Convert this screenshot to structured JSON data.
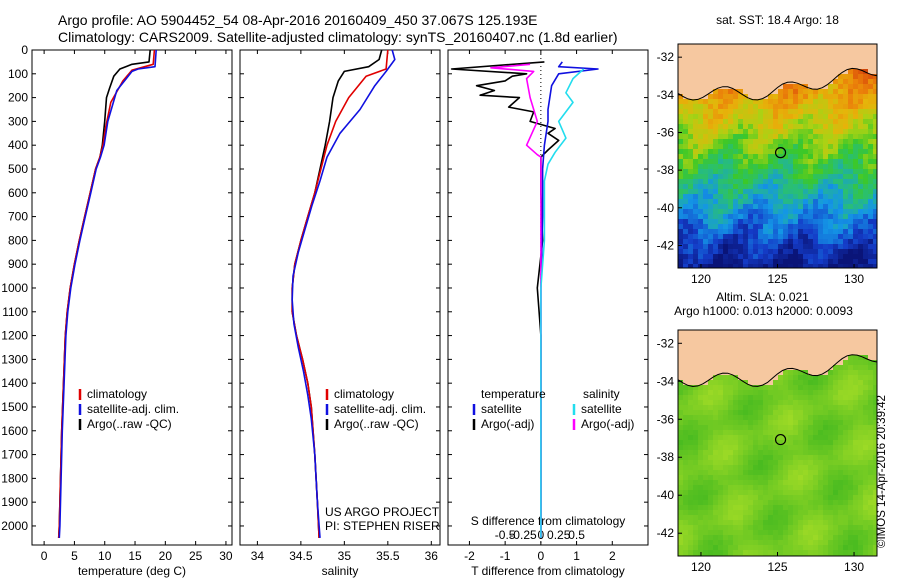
{
  "title_line1": "Argo profile: AO 5904452_54 08-Apr-2016 20160409_450 37.067S 125.193E",
  "title_line2": "Climatology: CARS2009. Satellite-adjusted climatology: synTS_20160407.nc (1.8d earlier)",
  "vertical_stamp": "©IMOS 14-Apr-2016 20:39:42",
  "project_line1": "US ARGO PROJECT",
  "project_line2": "PI: STEPHEN RISER",
  "colors": {
    "climatology": "#e00000",
    "satellite": "#1010e0",
    "argo": "#000000",
    "argo_adj_S": "#ff00ff",
    "satellite_S": "#22ddee",
    "land": "#f6c8a0"
  },
  "chart_data": [
    {
      "type": "line",
      "title": "",
      "xlabel": "temperature (deg C)",
      "ylabel": "",
      "xlim": [
        -2,
        31
      ],
      "ylim": [
        2080,
        0
      ],
      "xticks": [
        0,
        5,
        10,
        15,
        20,
        25,
        30
      ],
      "yticks": [
        0,
        100,
        200,
        300,
        400,
        500,
        600,
        700,
        800,
        900,
        1000,
        1100,
        1200,
        1300,
        1400,
        1500,
        1600,
        1700,
        1800,
        1900,
        2000
      ],
      "legend": [
        "climatology",
        "satellite-adj. clim.",
        "Argo(..raw -QC)"
      ],
      "series": [
        {
          "name": "Argo(..raw -QC)",
          "color_key": "argo",
          "points": [
            [
              17.5,
              0
            ],
            [
              17.3,
              50
            ],
            [
              14.5,
              60
            ],
            [
              12.5,
              80
            ],
            [
              11.5,
              110
            ],
            [
              10.8,
              160
            ],
            [
              10.3,
              200
            ],
            [
              10.0,
              300
            ],
            [
              9.6,
              400
            ],
            [
              9.2,
              450
            ],
            [
              8.5,
              500
            ],
            [
              7.6,
              600
            ],
            [
              6.7,
              700
            ],
            [
              5.8,
              800
            ],
            [
              5.0,
              900
            ],
            [
              4.3,
              1000
            ],
            [
              3.8,
              1100
            ],
            [
              3.5,
              1200
            ],
            [
              3.2,
              1400
            ],
            [
              2.9,
              1600
            ],
            [
              2.7,
              1800
            ],
            [
              2.5,
              2000
            ],
            [
              2.4,
              2050
            ]
          ]
        },
        {
          "name": "climatology",
          "color_key": "climatology",
          "points": [
            [
              18.2,
              0
            ],
            [
              18.0,
              60
            ],
            [
              14.5,
              85
            ],
            [
              13.0,
              130
            ],
            [
              11.0,
              220
            ],
            [
              10.2,
              320
            ],
            [
              9.7,
              400
            ],
            [
              9.2,
              450
            ],
            [
              8.5,
              500
            ],
            [
              7.6,
              600
            ],
            [
              6.7,
              700
            ],
            [
              5.8,
              800
            ],
            [
              5.0,
              900
            ],
            [
              4.3,
              1000
            ],
            [
              3.8,
              1100
            ],
            [
              3.5,
              1200
            ],
            [
              3.2,
              1400
            ],
            [
              2.9,
              1600
            ],
            [
              2.7,
              1800
            ],
            [
              2.5,
              2000
            ],
            [
              2.4,
              2050
            ]
          ]
        },
        {
          "name": "satellite-adj. clim.",
          "color_key": "satellite",
          "points": [
            [
              18.5,
              0
            ],
            [
              18.3,
              70
            ],
            [
              15.5,
              80
            ],
            [
              14.5,
              90
            ],
            [
              12.0,
              170
            ],
            [
              10.5,
              300
            ],
            [
              9.9,
              400
            ],
            [
              9.3,
              450
            ],
            [
              8.6,
              500
            ],
            [
              7.7,
              600
            ],
            [
              6.8,
              700
            ],
            [
              5.9,
              800
            ],
            [
              5.1,
              900
            ],
            [
              4.4,
              1000
            ],
            [
              3.9,
              1100
            ],
            [
              3.6,
              1200
            ],
            [
              3.3,
              1400
            ],
            [
              3.0,
              1600
            ],
            [
              2.8,
              1800
            ],
            [
              2.6,
              2000
            ],
            [
              2.5,
              2050
            ]
          ]
        }
      ]
    },
    {
      "type": "line",
      "title": "",
      "xlabel": "salinity",
      "ylabel": "",
      "xlim": [
        33.8,
        36.1
      ],
      "ylim": [
        2080,
        0
      ],
      "xticks": [
        34,
        34.5,
        35,
        35.5,
        36
      ],
      "xtick_labels": [
        "34",
        "34.5",
        "35",
        "35.5",
        "36"
      ],
      "legend": [
        "climatology",
        "satellite-adj. clim.",
        "Argo(..raw -QC)"
      ],
      "series": [
        {
          "name": "Argo(..raw -QC)",
          "color_key": "argo",
          "points": [
            [
              35.43,
              0
            ],
            [
              35.4,
              40
            ],
            [
              35.28,
              70
            ],
            [
              35.0,
              90
            ],
            [
              34.93,
              130
            ],
            [
              34.87,
              200
            ],
            [
              34.83,
              300
            ],
            [
              34.78,
              400
            ],
            [
              34.72,
              500
            ],
            [
              34.66,
              600
            ],
            [
              34.58,
              700
            ],
            [
              34.5,
              800
            ],
            [
              34.43,
              900
            ],
            [
              34.4,
              1000
            ],
            [
              34.4,
              1100
            ],
            [
              34.45,
              1200
            ],
            [
              34.52,
              1300
            ],
            [
              34.58,
              1400
            ],
            [
              34.62,
              1500
            ],
            [
              34.66,
              1700
            ],
            [
              34.69,
              1900
            ],
            [
              34.71,
              2050
            ]
          ]
        },
        {
          "name": "climatology",
          "color_key": "climatology",
          "points": [
            [
              35.5,
              0
            ],
            [
              35.48,
              80
            ],
            [
              35.25,
              110
            ],
            [
              35.05,
              200
            ],
            [
              34.9,
              300
            ],
            [
              34.8,
              400
            ],
            [
              34.73,
              500
            ],
            [
              34.66,
              600
            ],
            [
              34.58,
              700
            ],
            [
              34.5,
              800
            ],
            [
              34.43,
              900
            ],
            [
              34.4,
              1000
            ],
            [
              34.4,
              1100
            ],
            [
              34.45,
              1200
            ],
            [
              34.52,
              1300
            ],
            [
              34.58,
              1400
            ],
            [
              34.62,
              1500
            ],
            [
              34.66,
              1700
            ],
            [
              34.69,
              1900
            ],
            [
              34.71,
              2050
            ]
          ]
        },
        {
          "name": "satellite-adj. clim.",
          "color_key": "satellite",
          "points": [
            [
              35.55,
              0
            ],
            [
              35.58,
              40
            ],
            [
              35.48,
              90
            ],
            [
              35.35,
              150
            ],
            [
              35.18,
              250
            ],
            [
              34.95,
              350
            ],
            [
              34.8,
              450
            ],
            [
              34.72,
              550
            ],
            [
              34.63,
              650
            ],
            [
              34.55,
              750
            ],
            [
              34.47,
              850
            ],
            [
              34.41,
              950
            ],
            [
              34.4,
              1050
            ],
            [
              34.42,
              1150
            ],
            [
              34.47,
              1250
            ],
            [
              34.53,
              1350
            ],
            [
              34.58,
              1450
            ],
            [
              34.62,
              1550
            ],
            [
              34.66,
              1700
            ],
            [
              34.69,
              1900
            ],
            [
              34.72,
              2050
            ]
          ]
        }
      ]
    },
    {
      "type": "line",
      "title": "",
      "xlabel": "T difference from climatology",
      "xlabel_top": "S difference from climatology",
      "ylabel": "",
      "xlim": [
        -2.6,
        3
      ],
      "ylim": [
        2080,
        0
      ],
      "xticks": [
        -2,
        -1,
        0,
        1,
        2
      ],
      "xtick_labels": [
        "-2",
        "-1",
        "0",
        "1",
        "2"
      ],
      "sticks": [
        -1,
        -0.5,
        0,
        0.5,
        1
      ],
      "stick_labels": [
        "-0.5",
        "-0.25",
        "0",
        "0.25",
        "0.5"
      ],
      "legend_left_title": "temperature",
      "legend_right_title": "salinity",
      "legend": [
        "satellite",
        "Argo(-adj)",
        "satellite",
        "Argo(-adj)"
      ],
      "series": [
        {
          "name": "T Argo(-adj)",
          "color_key": "argo",
          "points": [
            [
              0.1,
              50
            ],
            [
              -2.5,
              80
            ],
            [
              -0.4,
              100
            ],
            [
              -0.8,
              110
            ],
            [
              -1.0,
              130
            ],
            [
              -1.8,
              150
            ],
            [
              -1.3,
              170
            ],
            [
              -1.7,
              190
            ],
            [
              -0.6,
              200
            ],
            [
              -0.9,
              240
            ],
            [
              -0.2,
              260
            ],
            [
              -0.3,
              300
            ],
            [
              0.4,
              330
            ],
            [
              0.2,
              350
            ],
            [
              0.5,
              380
            ],
            [
              0.2,
              420
            ],
            [
              0.0,
              450
            ],
            [
              0.0,
              600
            ],
            [
              0.05,
              800
            ],
            [
              -0.1,
              1000
            ],
            [
              0.0,
              1200
            ],
            [
              0.0,
              1500
            ],
            [
              0.0,
              2050
            ]
          ]
        },
        {
          "name": "T satellite",
          "color_key": "satellite",
          "points": [
            [
              0.6,
              50
            ],
            [
              0.5,
              70
            ],
            [
              1.6,
              80
            ],
            [
              0.5,
              100
            ],
            [
              0.3,
              150
            ],
            [
              0.2,
              250
            ],
            [
              0.2,
              300
            ],
            [
              0.1,
              400
            ],
            [
              0.05,
              500
            ],
            [
              0.05,
              700
            ],
            [
              0.0,
              1000
            ],
            [
              0.0,
              1400
            ],
            [
              0.0,
              2050
            ]
          ]
        },
        {
          "name": "S Argo(-adj)",
          "color_key": "argo_adj_S",
          "points": [
            [
              -0.3,
              60
            ],
            [
              -1.4,
              75
            ],
            [
              -0.2,
              90
            ],
            [
              -0.4,
              120
            ],
            [
              -0.3,
              200
            ],
            [
              -0.1,
              300
            ],
            [
              -0.4,
              400
            ],
            [
              -0.1,
              440
            ],
            [
              0.0,
              450
            ],
            [
              0.0,
              2050
            ]
          ]
        },
        {
          "name": "S satellite",
          "color_key": "satellite_S",
          "points": [
            [
              1.2,
              80
            ],
            [
              0.9,
              120
            ],
            [
              0.7,
              180
            ],
            [
              0.9,
              220
            ],
            [
              0.5,
              300
            ],
            [
              0.7,
              370
            ],
            [
              0.4,
              430
            ],
            [
              0.2,
              480
            ],
            [
              0.1,
              550
            ],
            [
              0.1,
              800
            ],
            [
              0.0,
              1000
            ],
            [
              0.0,
              2050
            ]
          ]
        }
      ]
    },
    {
      "type": "heatmap",
      "title": "sat. SST: 18.4 Argo: 18",
      "xticks": [
        120,
        125,
        130
      ],
      "yticks": [
        -32,
        -34,
        -36,
        -38,
        -40,
        -42
      ],
      "xlim": [
        118.5,
        131.5
      ],
      "ylim": [
        -43.2,
        -31.3
      ],
      "marker": [
        125.2,
        -37.07
      ]
    },
    {
      "type": "heatmap",
      "title_line1": "Altim. SLA: 0.021",
      "title_line2": "Argo h1000: 0.013 h2000: 0.0093",
      "xticks": [
        120,
        125,
        130
      ],
      "yticks": [
        -32,
        -34,
        -36,
        -38,
        -40,
        -42
      ],
      "xlim": [
        118.5,
        131.5
      ],
      "ylim": [
        -43.2,
        -31.3
      ],
      "marker": [
        125.2,
        -37.07
      ]
    }
  ]
}
